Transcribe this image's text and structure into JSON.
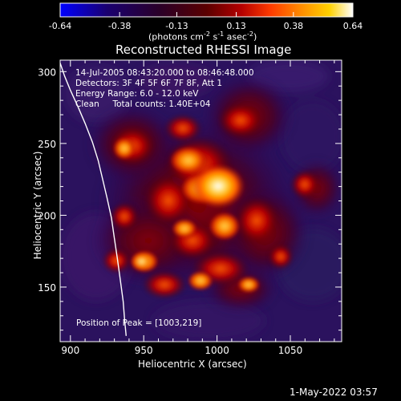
{
  "colorbar": {
    "ticks": [
      "-0.64",
      "-0.38",
      "-0.13",
      "0.13",
      "0.38",
      "0.64"
    ],
    "values": [
      -0.64,
      -0.38,
      -0.13,
      0.13,
      0.38,
      0.64
    ],
    "unit_label_parts": {
      "prefix": "(photons cm",
      "sup1": "-2",
      "mid1": " s",
      "sup2": "-1",
      "mid2": " asec",
      "sup3": "-2",
      "suffix": ")"
    },
    "gradient_colors": [
      "#0000ff",
      "#1a0070",
      "#2a0028",
      "#5a0000",
      "#b50000",
      "#ff3b00",
      "#ff8a00",
      "#ffd100",
      "#ffffff"
    ]
  },
  "plot": {
    "title": "Reconstructed RHESSI Image",
    "info_lines": [
      "14-Jul-2005 08:43:20.000 to 08:46:48.000",
      "Detectors: 3F 4F 5F 6F 7F 8F, Att 1",
      "Energy Range: 6.0 - 12.0 keV",
      "Clean     Total counts: 1.40E+04"
    ],
    "peak_label": "Position of Peak = [1003,219]",
    "peak_position": [
      1003,
      219
    ],
    "x_axis": {
      "label": "Heliocentric X (arcsec)",
      "ticks": [
        "900",
        "950",
        "1000",
        "1050"
      ],
      "tick_values": [
        900,
        950,
        1000,
        1050
      ],
      "range": [
        893,
        1085
      ]
    },
    "y_axis": {
      "label": "Heliocentric Y (arcsec)",
      "ticks": [
        "150",
        "200",
        "250",
        "300"
      ],
      "tick_values": [
        150,
        200,
        250,
        300
      ],
      "range": [
        112,
        308
      ]
    },
    "limb_curve_points": [
      [
        893,
        306
      ],
      [
        896,
        297
      ],
      [
        900,
        287
      ],
      [
        905,
        276
      ],
      [
        910,
        264
      ],
      [
        915,
        251
      ],
      [
        919,
        238
      ],
      [
        922,
        225
      ],
      [
        925,
        212
      ],
      [
        928,
        198
      ],
      [
        930,
        184
      ],
      [
        932,
        170
      ],
      [
        934,
        155
      ],
      [
        936,
        140
      ],
      [
        937,
        127
      ],
      [
        938,
        116
      ]
    ]
  },
  "timestamp": "1-May-2022 03:57"
}
